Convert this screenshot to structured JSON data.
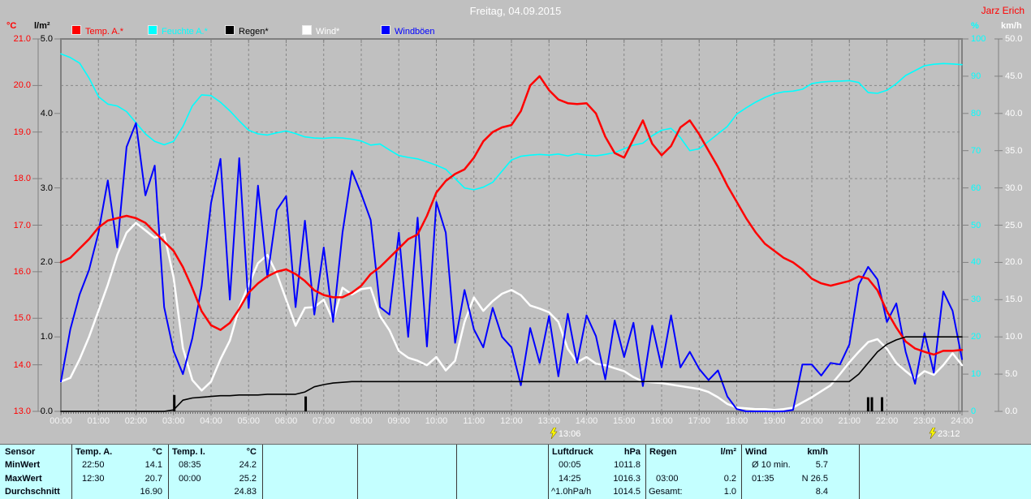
{
  "header": {
    "title": "Freitag, 04.09.2015",
    "station": "Jarz Erich"
  },
  "legend": [
    {
      "label": "Temp. A.*",
      "color": "#ff0000",
      "text_color": "#ff0000"
    },
    {
      "label": "Feuchte A.*",
      "color": "#00ffff",
      "text_color": "#00ffff"
    },
    {
      "label": "Regen*",
      "color": "#000000",
      "text_color": "#000000"
    },
    {
      "label": "Wind*",
      "color": "#ffffff",
      "text_color": "#ffffff"
    },
    {
      "label": "Windböen",
      "color": "#0000ff",
      "text_color": "#0000ff"
    }
  ],
  "axes": {
    "temp": {
      "unit": "°C",
      "color": "#ff0000",
      "min": 13,
      "max": 21,
      "ticks": [
        "21.0",
        "20.0",
        "19.0",
        "18.0",
        "17.0",
        "16.0",
        "15.0",
        "14.0",
        "13.0"
      ]
    },
    "rain": {
      "unit": "l/m²",
      "color": "#000000",
      "min": 0,
      "max": 5,
      "ticks": [
        "5.0",
        "4.0",
        "3.0",
        "2.0",
        "1.0",
        "0.0"
      ]
    },
    "humidity": {
      "unit": "%",
      "color": "#00ffff",
      "min": 0,
      "max": 100,
      "ticks": [
        "100",
        "90",
        "80",
        "70",
        "60",
        "50",
        "40",
        "30",
        "20",
        "10",
        "0"
      ]
    },
    "windspeed": {
      "unit": "km/h",
      "color": "#ffffff",
      "min": 0,
      "max": 50,
      "ticks": [
        "50.0",
        "45.0",
        "40.0",
        "35.0",
        "30.0",
        "25.0",
        "20.0",
        "15.0",
        "10.0",
        "5.0",
        "0.0"
      ]
    },
    "time": {
      "labels": [
        "00:00",
        "01:00",
        "02:00",
        "03:00",
        "04:00",
        "05:00",
        "06:00",
        "07:00",
        "08:00",
        "09:00",
        "10:00",
        "11:00",
        "12:00",
        "13:00",
        "14:00",
        "15:00",
        "16:00",
        "17:00",
        "18:00",
        "19:00",
        "20:00",
        "21:00",
        "22:00",
        "23:00",
        "24:00"
      ]
    }
  },
  "markers": [
    {
      "time": "13:06",
      "hour": 13.1
    },
    {
      "time": "23:12",
      "hour": 23.2
    }
  ],
  "chart_data": {
    "type": "line",
    "title": "Freitag, 04.09.2015",
    "x_start_hour": 0,
    "x_step_hours": 0.25,
    "grid": true,
    "series": [
      {
        "key": "feuchte-a",
        "name": "Feuchte A.",
        "axis": "humidity",
        "color": "#00ffff",
        "width": 1.6,
        "values": [
          96,
          95,
          93.5,
          89.5,
          84.5,
          82.5,
          82,
          80.5,
          77.5,
          74.5,
          72.5,
          71.6,
          72.5,
          76.5,
          82,
          85,
          84.8,
          83,
          80.7,
          78,
          75.5,
          74.5,
          74.2,
          74.8,
          75.3,
          74.6,
          73.7,
          73.4,
          73.3,
          73.5,
          73.4,
          73.1,
          72.6,
          71.5,
          71.8,
          70.2,
          68.7,
          68.2,
          67.8,
          67,
          66.1,
          65,
          62.5,
          60,
          59.5,
          60.2,
          61.5,
          64.5,
          67.5,
          68.5,
          68.8,
          69,
          68.8,
          69.1,
          68.6,
          69.2,
          68.8,
          68.6,
          69,
          69.5,
          70.5,
          71.5,
          72,
          74,
          75.5,
          76,
          73.5,
          70,
          70.5,
          72.5,
          74.5,
          76.5,
          79.8,
          81.5,
          83,
          84.3,
          85.3,
          85.8,
          86,
          86.5,
          88,
          88.4,
          88.6,
          88.7,
          88.8,
          88.3,
          85.6,
          85.4,
          86.2,
          88,
          90.2,
          91.5,
          92.8,
          93.2,
          93.4,
          93.3,
          93.1
        ]
      },
      {
        "key": "wind",
        "name": "Wind",
        "axis": "windspeed",
        "color": "#ffffff",
        "width": 2.5,
        "values": [
          4,
          4.5,
          7,
          10,
          13.5,
          17,
          21,
          24,
          25.3,
          24.3,
          23.3,
          23.8,
          18,
          8.5,
          4.2,
          2.8,
          4,
          7,
          9.5,
          13.9,
          17,
          19.9,
          21,
          18.5,
          15,
          11.5,
          13.9,
          14,
          15,
          12.2,
          16.6,
          15.7,
          16.4,
          16.6,
          12.8,
          10.9,
          8.1,
          7.2,
          6.8,
          6.2,
          7.3,
          5.5,
          6.8,
          12,
          15.3,
          13.5,
          14.8,
          15.8,
          16.3,
          15.6,
          14.2,
          13.8,
          13.3,
          12,
          8.4,
          6.6,
          7.3,
          6.4,
          6.2,
          5.8,
          5.4,
          4.6,
          4,
          3.9,
          3.8,
          3.6,
          3.4,
          3.2,
          3,
          2.6,
          1.9,
          1,
          0.5,
          0.4,
          0.3,
          0.3,
          0.2,
          0.3,
          0.5,
          1.2,
          1.9,
          2.7,
          3.5,
          5,
          6.6,
          8,
          9.3,
          9.7,
          8.4,
          6.5,
          5.4,
          4.4,
          5.4,
          4.9,
          6.2,
          7.8,
          6.2
        ]
      },
      {
        "key": "windboeen",
        "name": "Windböen",
        "axis": "windspeed",
        "color": "#0000ff",
        "width": 2,
        "values": [
          4,
          11,
          15.7,
          19,
          24,
          31,
          22,
          35.5,
          38.7,
          29,
          33,
          14,
          8.1,
          5,
          9.8,
          16.8,
          28,
          33.9,
          15,
          34,
          13.9,
          30.3,
          18,
          27,
          28.9,
          14,
          25.6,
          13,
          22,
          12,
          24,
          32.3,
          29.2,
          25.7,
          14,
          13,
          24,
          10,
          26,
          8.7,
          28.1,
          24,
          9.2,
          16.3,
          11,
          8.6,
          13.9,
          10,
          8.6,
          3.5,
          11.2,
          6.5,
          12.8,
          4.7,
          13.1,
          6.5,
          12.9,
          10.1,
          4.3,
          12.2,
          7.3,
          11.9,
          3.4,
          11.5,
          5.9,
          12.9,
          5.9,
          8,
          5.7,
          4.2,
          5.5,
          2,
          0.3,
          0,
          0,
          0,
          0,
          0,
          0.2,
          6.3,
          6.3,
          4.8,
          6.5,
          6.3,
          9,
          17,
          19.4,
          17.7,
          12,
          14.5,
          8,
          3.7,
          10.5,
          5.2,
          16.1,
          13.5,
          7
        ]
      },
      {
        "key": "temp-a",
        "name": "Temp. A.",
        "axis": "temp",
        "color": "#ff0000",
        "width": 2.5,
        "values": [
          16.2,
          16.3,
          16.5,
          16.7,
          16.95,
          17.1,
          17.15,
          17.2,
          17.15,
          17.05,
          16.85,
          16.65,
          16.45,
          16.1,
          15.65,
          15.15,
          14.85,
          14.75,
          14.9,
          15.2,
          15.55,
          15.75,
          15.9,
          16,
          16.05,
          15.95,
          15.8,
          15.6,
          15.5,
          15.45,
          15.45,
          15.55,
          15.7,
          15.95,
          16.1,
          16.3,
          16.5,
          16.7,
          16.8,
          17.2,
          17.7,
          17.95,
          18.1,
          18.2,
          18.45,
          18.8,
          19,
          19.1,
          19.15,
          19.45,
          20,
          20.2,
          19.9,
          19.7,
          19.62,
          19.6,
          19.62,
          19.4,
          18.9,
          18.55,
          18.45,
          18.85,
          19.25,
          18.75,
          18.5,
          18.7,
          19.1,
          19.25,
          18.95,
          18.6,
          18.25,
          17.85,
          17.5,
          17.15,
          16.85,
          16.6,
          16.45,
          16.3,
          16.2,
          16.05,
          15.85,
          15.75,
          15.7,
          15.75,
          15.8,
          15.9,
          15.85,
          15.6,
          15.15,
          14.8,
          14.5,
          14.35,
          14.28,
          14.22,
          14.3,
          14.3,
          14.32
        ]
      },
      {
        "key": "regen",
        "name": "Regen",
        "axis": "rain",
        "color": "#000000",
        "width": 1.6,
        "values": [
          0,
          0,
          0,
          0,
          0,
          0,
          0,
          0,
          0,
          0,
          0,
          0,
          0.02,
          0.15,
          0.18,
          0.19,
          0.2,
          0.21,
          0.21,
          0.22,
          0.22,
          0.22,
          0.23,
          0.23,
          0.23,
          0.23,
          0.26,
          0.33,
          0.36,
          0.38,
          0.39,
          0.4,
          0.4,
          0.4,
          0.4,
          0.4,
          0.4,
          0.4,
          0.4,
          0.4,
          0.4,
          0.4,
          0.4,
          0.4,
          0.4,
          0.4,
          0.4,
          0.4,
          0.4,
          0.4,
          0.4,
          0.4,
          0.4,
          0.4,
          0.4,
          0.4,
          0.4,
          0.4,
          0.4,
          0.4,
          0.4,
          0.4,
          0.4,
          0.4,
          0.4,
          0.4,
          0.4,
          0.4,
          0.4,
          0.4,
          0.4,
          0.4,
          0.4,
          0.4,
          0.4,
          0.4,
          0.4,
          0.4,
          0.4,
          0.4,
          0.4,
          0.4,
          0.4,
          0.4,
          0.4,
          0.5,
          0.65,
          0.8,
          0.9,
          0.96,
          1,
          1,
          1,
          1,
          1,
          1,
          1
        ]
      }
    ],
    "rain_bars": [
      {
        "hour": 3.02,
        "height": 0.22
      },
      {
        "hour": 6.52,
        "height": 0.2
      },
      {
        "hour": 21.5,
        "height": 0.19
      },
      {
        "hour": 21.6,
        "height": 0.19
      },
      {
        "hour": 21.87,
        "height": 0.19
      }
    ]
  },
  "table": {
    "row_labels": [
      "Sensor",
      "MinWert",
      "MaxWert",
      "Durchschnitt"
    ],
    "columns": [
      {
        "name": "Temp. A.",
        "unit": "°C",
        "min_time": "22:50",
        "min_val": "14.1",
        "max_time": "12:30",
        "max_val": "20.7",
        "avg_label": "",
        "avg_val": "16.90"
      },
      {
        "name": "Temp. I.",
        "unit": "°C",
        "min_time": "08:35",
        "min_val": "24.2",
        "max_time": "00:00",
        "max_val": "25.2",
        "avg_label": "",
        "avg_val": "24.83"
      },
      {
        "name": "",
        "unit": "",
        "min_time": "",
        "min_val": "",
        "max_time": "",
        "max_val": "",
        "avg_label": "",
        "avg_val": ""
      },
      {
        "name": "",
        "unit": "",
        "min_time": "",
        "min_val": "",
        "max_time": "",
        "max_val": "",
        "avg_label": "",
        "avg_val": ""
      },
      {
        "name": "",
        "unit": "",
        "min_time": "",
        "min_val": "",
        "max_time": "",
        "max_val": "",
        "avg_label": "",
        "avg_val": ""
      },
      {
        "name": "Luftdruck",
        "unit": "hPa",
        "min_time": "00:05",
        "min_val": "1011.8",
        "max_time": "14:25",
        "max_val": "1016.3",
        "avg_label": "^1.0hPa/h",
        "avg_val": "1014.5"
      },
      {
        "name": "Regen",
        "unit": "l/m²",
        "min_time": "",
        "min_val": "",
        "max_time": "03:00",
        "max_val": "0.2",
        "avg_label": "Gesamt:",
        "avg_val": "1.0"
      },
      {
        "name": "Wind",
        "unit": "km/h",
        "min_time": "Ø 10 min.",
        "min_val": "5.7",
        "max_time": "01:35",
        "max_val": "N 26.5",
        "avg_label": "",
        "avg_val": "8.4"
      }
    ]
  },
  "colors": {
    "background": "#c0c0c0",
    "grid": "#868686",
    "frame": "#808080",
    "table_bg": "#c4ffff",
    "title_text": "#ffffff",
    "station_text": "#ff0000"
  }
}
